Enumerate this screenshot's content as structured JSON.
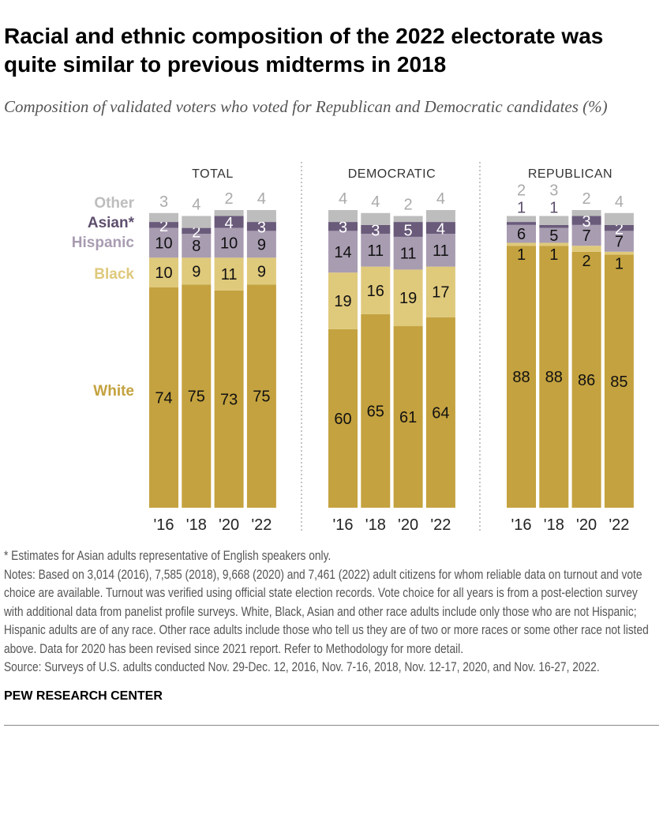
{
  "title": "Racial and ethnic composition of the 2022 electorate was quite similar to previous midterms in 2018",
  "subtitle": "Composition of validated voters who voted for Republican and Democratic candidates (%)",
  "chart_data": {
    "type": "stacked-bar",
    "categories": [
      "'16",
      "'18",
      "'20",
      "'22"
    ],
    "legend_labels": [
      "White",
      "Black",
      "Hispanic",
      "Asian*",
      "Other"
    ],
    "colors": {
      "White": "#C4A23F",
      "Black": "#DFC97B",
      "Hispanic": "#A89CB1",
      "Asian*": "#6A5B7B",
      "Other": "#BDBDBD"
    },
    "panels": [
      {
        "title": "TOTAL",
        "series": {
          "White": [
            74,
            75,
            73,
            75
          ],
          "Black": [
            10,
            9,
            11,
            9
          ],
          "Hispanic": [
            10,
            8,
            10,
            9
          ],
          "Asian*": [
            2,
            2,
            4,
            3
          ],
          "Other": [
            3,
            4,
            2,
            4
          ]
        }
      },
      {
        "title": "DEMOCRATIC",
        "series": {
          "White": [
            60,
            65,
            61,
            64
          ],
          "Black": [
            19,
            16,
            19,
            17
          ],
          "Hispanic": [
            14,
            11,
            11,
            11
          ],
          "Asian*": [
            3,
            3,
            5,
            4
          ],
          "Other": [
            4,
            4,
            2,
            4
          ]
        }
      },
      {
        "title": "REPUBLICAN",
        "series": {
          "White": [
            88,
            88,
            86,
            85
          ],
          "Black": [
            1,
            1,
            2,
            1
          ],
          "Hispanic": [
            6,
            5,
            7,
            7
          ],
          "Asian*": [
            1,
            1,
            3,
            2
          ],
          "Other": [
            2,
            3,
            2,
            4
          ]
        }
      }
    ]
  },
  "notes": {
    "footnote": "* Estimates for Asian adults representative of English speakers only.",
    "notes": "Notes: Based on 3,014 (2016), 7,585 (2018), 9,668 (2020) and 7,461 (2022) adult citizens for whom reliable data on turnout and vote choice are available. Turnout was verified using official state election records. Vote choice for all years is from a post-election survey with additional data from panelist profile surveys. White, Black, Asian and other race adults include only those who are not Hispanic; Hispanic adults are of any race. Other race adults include those who tell us they are of two or more races or some other race not listed above. Data for 2020 has been revised since 2021 report. Refer to Methodology for more detail.",
    "source": "Source: Surveys of U.S. adults conducted Nov. 29-Dec. 12, 2016, Nov. 7-16, 2018, Nov. 12-17, 2020, and Nov. 16-27, 2022."
  },
  "brand": "PEW RESEARCH CENTER"
}
